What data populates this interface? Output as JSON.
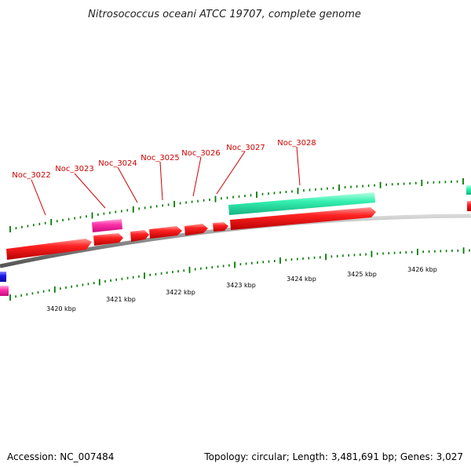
{
  "title": "Nitrosococcus oceani ATCC 19707, complete genome",
  "footer": {
    "accession": "Accession: NC_007484",
    "summary": "Topology: circular; Length: 3,481,691 bp; Genes: 3,027"
  },
  "colors": {
    "forward_cds": "#ee0000",
    "reverse_cds": "#ff33aa",
    "feature_teal": "#33f0b0",
    "feature_blue": "#1a1aee",
    "backbone": "#808080",
    "tick": "#007a00",
    "label": "#cc0000"
  },
  "gene_labels": [
    "Noc_3022",
    "Noc_3023",
    "Noc_3024",
    "Noc_3025",
    "Noc_3026",
    "Noc_3027",
    "Noc_3028"
  ],
  "kbp_labels": [
    "3420 kbp",
    "3421 kbp",
    "3422 kbp",
    "3423 kbp",
    "3424 kbp",
    "3425 kbp",
    "3426 kbp"
  ]
}
